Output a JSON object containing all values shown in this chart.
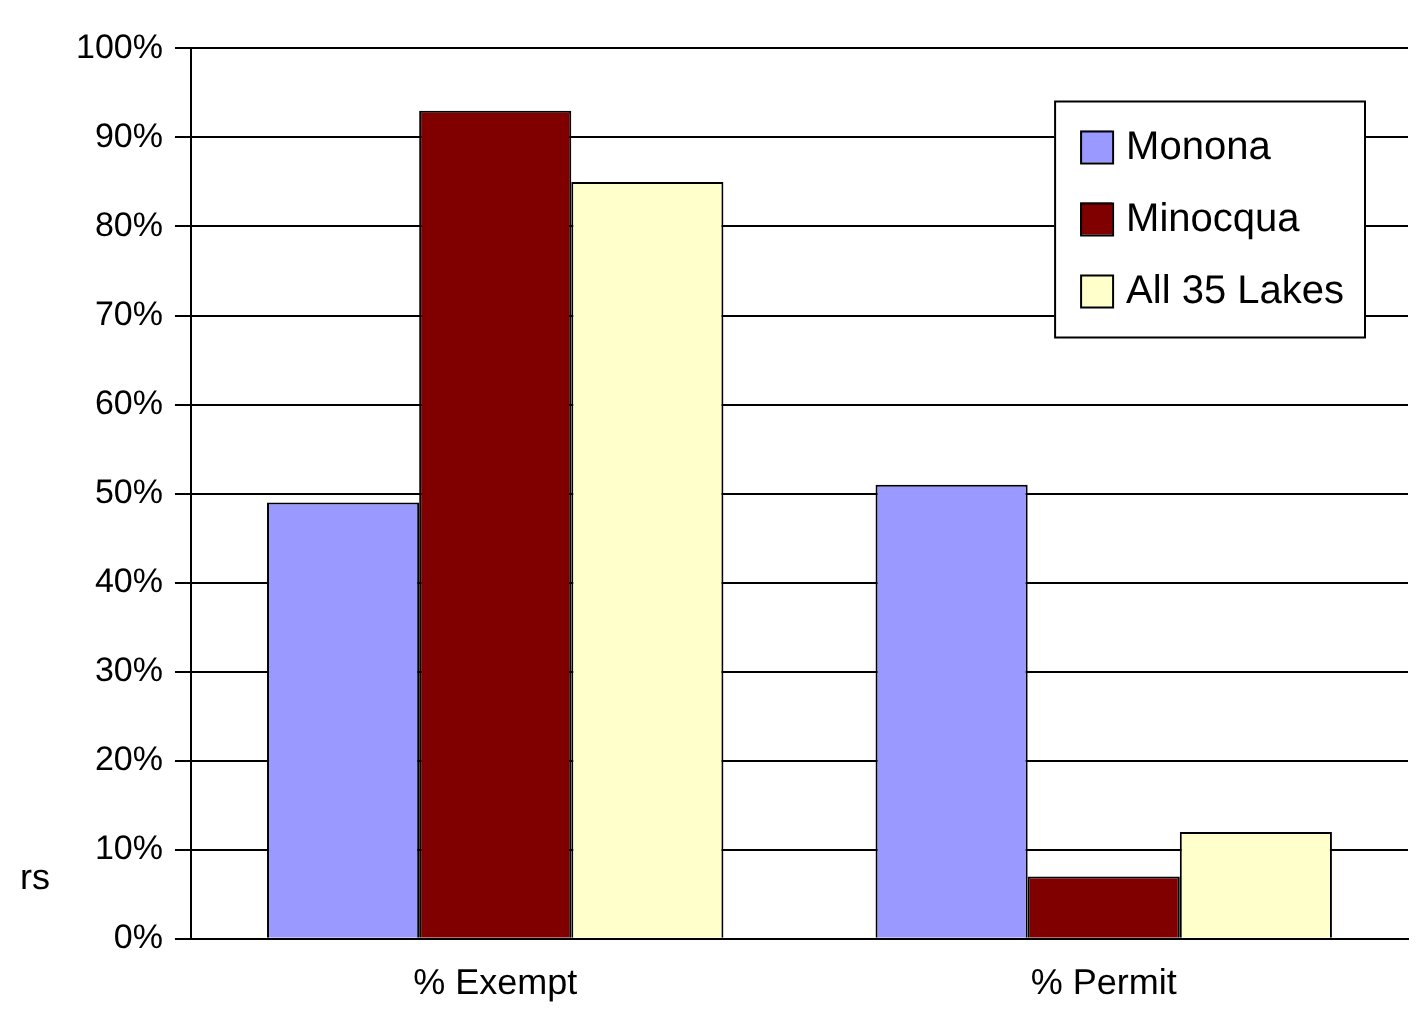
{
  "chart_data": {
    "type": "bar",
    "ylabel": "rs",
    "categories": [
      "% Exempt",
      "% Permit"
    ],
    "series": [
      {
        "name": "Monona",
        "color": "#9999ff",
        "values": [
          49,
          51
        ]
      },
      {
        "name": "Minocqua",
        "color": "#800000",
        "values": [
          93,
          7
        ]
      },
      {
        "name": "All 35 Lakes",
        "color": "#ffffcc",
        "values": [
          85,
          12
        ]
      }
    ],
    "ylim": [
      0,
      100
    ],
    "yticks": [
      {
        "value": 0,
        "label": "0%"
      },
      {
        "value": 10,
        "label": "10%"
      },
      {
        "value": 20,
        "label": "20%"
      },
      {
        "value": 30,
        "label": "30%"
      },
      {
        "value": 40,
        "label": "40%"
      },
      {
        "value": 50,
        "label": "50%"
      },
      {
        "value": 60,
        "label": "60%"
      },
      {
        "value": 70,
        "label": "70%"
      },
      {
        "value": 80,
        "label": "80%"
      },
      {
        "value": 90,
        "label": "90%"
      },
      {
        "value": 100,
        "label": "100%"
      }
    ],
    "grid": "y",
    "legend": "top right"
  }
}
